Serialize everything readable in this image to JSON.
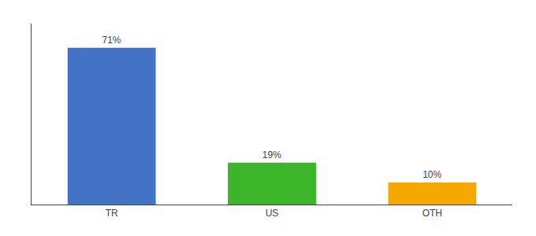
{
  "chart_data": {
    "type": "bar",
    "categories": [
      "TR",
      "US",
      "OTH"
    ],
    "values": [
      71,
      19,
      10
    ],
    "value_labels": [
      "71%",
      "19%",
      "10%"
    ],
    "data_labels": true,
    "colors": [
      "#4472c4",
      "#3cb52a",
      "#f5a800"
    ],
    "ylim": [
      0,
      82
    ],
    "grid": false,
    "tick_labels": "x"
  }
}
